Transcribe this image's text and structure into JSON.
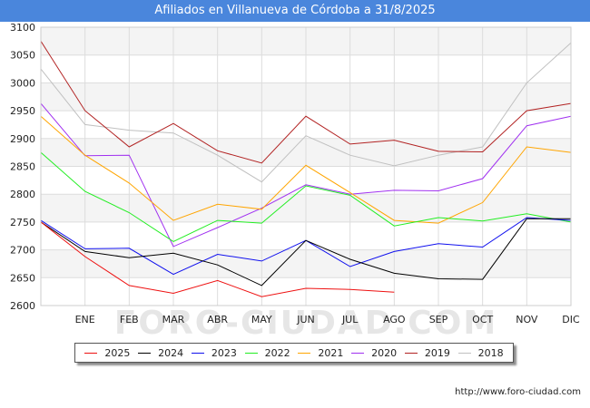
{
  "title": "Afiliados en Villanueva de Córdoba a 31/8/2025",
  "source": "http://www.foro-ciudad.com",
  "watermark": "FORO-CIUDAD.COM",
  "chart_data": {
    "type": "line",
    "title": "Afiliados en Villanueva de Córdoba a 31/8/2025",
    "x_categories": [
      "",
      "ENE",
      "FEB",
      "MAR",
      "ABR",
      "MAY",
      "JUN",
      "JUL",
      "AGO",
      "SEP",
      "OCT",
      "NOV",
      "DIC"
    ],
    "ylim": [
      2600,
      3100
    ],
    "yticks": [
      2600,
      2650,
      2700,
      2750,
      2800,
      2850,
      2900,
      2950,
      3000,
      3050,
      3100
    ],
    "grid": true,
    "legend_position": "bottom",
    "series": [
      {
        "name": "2018",
        "color": "#c0c0c0",
        "values": [
          3025,
          2925,
          2915,
          2910,
          2870,
          2822,
          2905,
          2870,
          2851,
          2870,
          2885,
          3000,
          3072
        ]
      },
      {
        "name": "2019",
        "color": "#b22222",
        "values": [
          3075,
          2950,
          2885,
          2927,
          2878,
          2856,
          2940,
          2890,
          2897,
          2877,
          2876,
          2950,
          2963
        ]
      },
      {
        "name": "2020",
        "color": "#a030f0",
        "values": [
          2963,
          2869,
          2870,
          2706,
          2740,
          2775,
          2817,
          2800,
          2807,
          2806,
          2828,
          2923,
          2940
        ]
      },
      {
        "name": "2021",
        "color": "#ffa500",
        "values": [
          2940,
          2870,
          2820,
          2753,
          2782,
          2773,
          2852,
          2803,
          2753,
          2748,
          2785,
          2885,
          2875
        ]
      },
      {
        "name": "2022",
        "color": "#22ee22",
        "values": [
          2875,
          2805,
          2767,
          2715,
          2753,
          2748,
          2815,
          2798,
          2743,
          2758,
          2752,
          2765,
          2750
        ]
      },
      {
        "name": "2023",
        "color": "#1010ee",
        "values": [
          2753,
          2702,
          2703,
          2656,
          2692,
          2680,
          2717,
          2670,
          2697,
          2711,
          2705,
          2758,
          2753
        ]
      },
      {
        "name": "2024",
        "color": "#000000",
        "values": [
          2750,
          2697,
          2686,
          2694,
          2673,
          2636,
          2717,
          2683,
          2658,
          2648,
          2647,
          2756,
          2756
        ]
      },
      {
        "name": "2025",
        "color": "#ee1111",
        "values": [
          2750,
          2688,
          2636,
          2622,
          2645,
          2616,
          2631,
          2629,
          2624
        ]
      }
    ]
  },
  "legend": [
    {
      "label": "2025",
      "color": "#ee1111"
    },
    {
      "label": "2024",
      "color": "#000000"
    },
    {
      "label": "2023",
      "color": "#1010ee"
    },
    {
      "label": "2022",
      "color": "#22ee22"
    },
    {
      "label": "2021",
      "color": "#ffa500"
    },
    {
      "label": "2020",
      "color": "#a030f0"
    },
    {
      "label": "2019",
      "color": "#b22222"
    },
    {
      "label": "2018",
      "color": "#c0c0c0"
    }
  ]
}
